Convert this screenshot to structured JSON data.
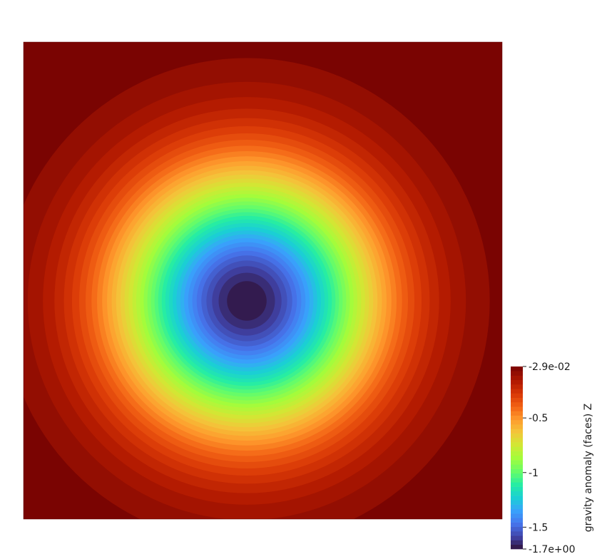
{
  "chart_data": {
    "type": "heatmap",
    "plot_type": "contour",
    "title": "",
    "field": "gravity anomaly (faces) Z",
    "value_range": [
      -1.7,
      -0.029
    ],
    "contour_levels": 41,
    "center_value": -1.7,
    "edge_value": -0.029,
    "colorbar": {
      "title": "gravity anomaly (faces) Z",
      "orientation": "vertical",
      "ticks": [
        {
          "value": -0.029,
          "label": "-2.9e-02"
        },
        {
          "value": -0.5,
          "label": "-0.5"
        },
        {
          "value": -1.0,
          "label": "-1"
        },
        {
          "value": -1.5,
          "label": "-1.5"
        },
        {
          "value": -1.7,
          "label": "-1.7e+00"
        }
      ],
      "colormap_stops": [
        {
          "value": 0.0,
          "color": "#30123b"
        },
        {
          "value": 0.07,
          "color": "#4145ab"
        },
        {
          "value": 0.14,
          "color": "#4675ed"
        },
        {
          "value": 0.21,
          "color": "#39a2fc"
        },
        {
          "value": 0.28,
          "color": "#1bcfd4"
        },
        {
          "value": 0.35,
          "color": "#24eca6"
        },
        {
          "value": 0.42,
          "color": "#61fc6c"
        },
        {
          "value": 0.5,
          "color": "#a4fc3b"
        },
        {
          "value": 0.57,
          "color": "#d1e834"
        },
        {
          "value": 0.64,
          "color": "#f3c63a"
        },
        {
          "value": 0.71,
          "color": "#fe9b2d"
        },
        {
          "value": 0.78,
          "color": "#f36315"
        },
        {
          "value": 0.85,
          "color": "#d93806"
        },
        {
          "value": 0.92,
          "color": "#b11901"
        },
        {
          "value": 1.0,
          "color": "#7a0402"
        }
      ]
    }
  }
}
